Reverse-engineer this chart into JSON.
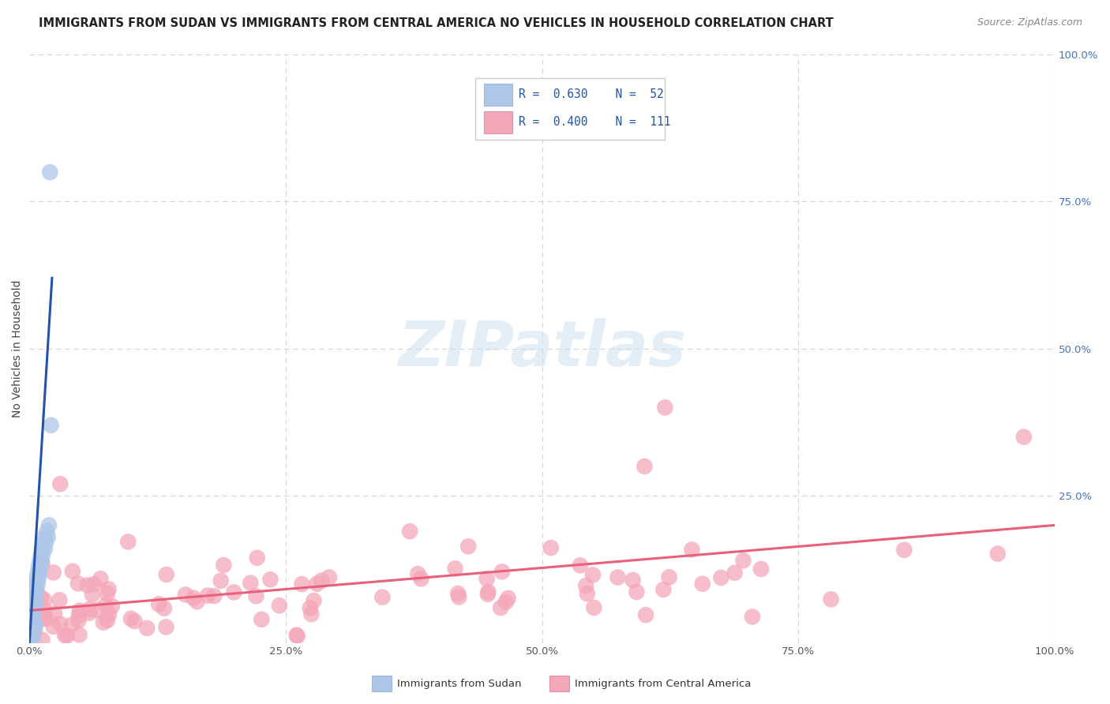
{
  "title": "IMMIGRANTS FROM SUDAN VS IMMIGRANTS FROM CENTRAL AMERICA NO VEHICLES IN HOUSEHOLD CORRELATION CHART",
  "source": "Source: ZipAtlas.com",
  "ylabel": "No Vehicles in Household",
  "legend_sudan_R": "R = 0.630",
  "legend_sudan_N": "N = 52",
  "legend_central_R": "R = 0.400",
  "legend_central_N": "N = 111",
  "legend_label_sudan": "Immigrants from Sudan",
  "legend_label_central": "Immigrants from Central America",
  "color_sudan_fill": "#aec6e8",
  "color_sudan_edge": "#7aadd4",
  "color_central_fill": "#f4a7b9",
  "color_central_edge": "#e87fa0",
  "color_sudan_line": "#2255aa",
  "color_central_line": "#e8607a",
  "color_legend_R": "#2255aa",
  "watermark_color": "#cce0f0",
  "background_color": "#ffffff",
  "grid_color": "#cccccc",
  "xlim": [
    0.0,
    1.0
  ],
  "ylim": [
    0.0,
    1.0
  ],
  "xticks": [
    0.0,
    0.25,
    0.5,
    0.75,
    1.0
  ],
  "xticklabels": [
    "0.0%",
    "25.0%",
    "50.0%",
    "75.0%",
    "100.0%"
  ],
  "yticks_right": [
    0.25,
    0.5,
    0.75,
    1.0
  ],
  "yticklabels_right": [
    "25.0%",
    "50.0%",
    "75.0%",
    "100.0%"
  ],
  "title_fontsize": 10.5,
  "axis_tick_fontsize": 9.5,
  "right_tick_color": "#4472c4"
}
